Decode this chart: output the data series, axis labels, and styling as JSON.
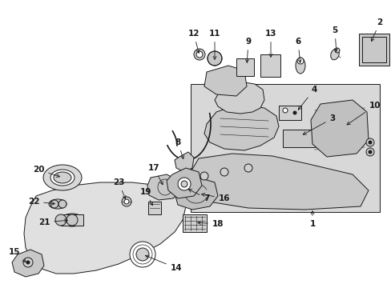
{
  "bg_color": "#ffffff",
  "line_color": "#1a1a1a",
  "fig_width": 4.89,
  "fig_height": 3.6,
  "dpi": 100,
  "shade_color": "#d8d8d8",
  "light_color": "#e8e8e8"
}
